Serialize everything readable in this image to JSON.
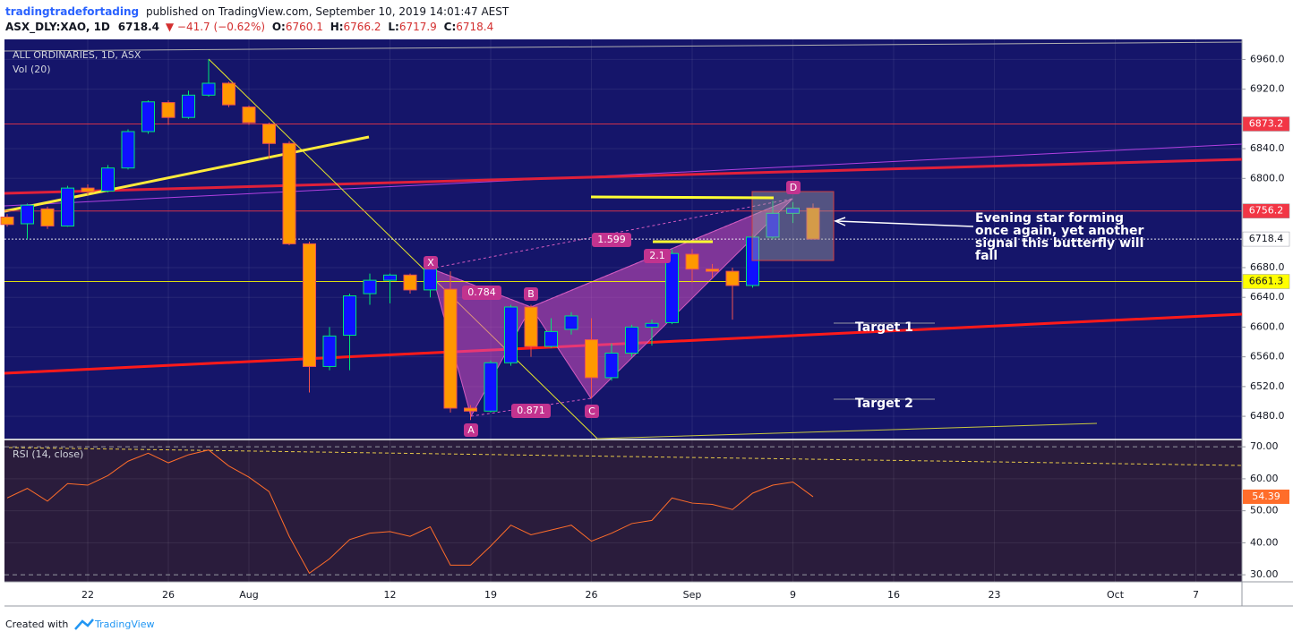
{
  "header": {
    "author": "tradingtradefortading",
    "published": "published on TradingView.com, September 10, 2019 14:01:47 AEST",
    "symbol": "ASX_DLY:XAO, 1D",
    "last": "6718.4",
    "change": "▼ −41.7 (−0.62%)",
    "ohlc": [
      {
        "label": "O:",
        "value": "6760.1"
      },
      {
        "label": "H:",
        "value": "6766.2"
      },
      {
        "label": "L:",
        "value": "6717.9"
      },
      {
        "label": "C:",
        "value": "6718.4"
      }
    ]
  },
  "chart_data": {
    "type": "candlestick",
    "title": "ALL ORDINARIES, 1D, ASX",
    "volume_label": "Vol (20)",
    "categories": [
      null,
      null,
      null,
      null,
      "22",
      null,
      null,
      null,
      "26",
      null,
      null,
      null,
      "Aug",
      null,
      null,
      null,
      null,
      null,
      null,
      "12",
      null,
      null,
      null,
      null,
      "19",
      null,
      null,
      null,
      null,
      "26",
      null,
      null,
      null,
      null,
      "Sep",
      null,
      null,
      null,
      null,
      "9",
      null,
      null,
      null,
      null,
      "16",
      null,
      null,
      null,
      null,
      "23",
      null,
      null,
      null,
      null,
      null,
      "Oct",
      null,
      null,
      null,
      "7",
      null,
      null
    ],
    "open": [
      6748,
      6739,
      6759,
      6736,
      6787,
      6783,
      6814,
      6863,
      6902,
      6882,
      6912,
      6928,
      6896,
      6873,
      6847,
      6712,
      6547,
      6589,
      6645,
      6663,
      6670,
      6650,
      6651,
      6491,
      6487,
      6552,
      6627,
      6574,
      6597,
      6583,
      6532,
      6565,
      6600,
      6606,
      6698,
      6678,
      6675,
      6656,
      6721,
      6753,
      6760.1,
      null,
      null,
      null,
      null,
      null,
      null,
      null,
      null,
      null,
      null,
      null,
      null,
      null,
      null,
      null,
      null,
      null,
      null,
      null,
      null,
      null
    ],
    "high": [
      6752,
      6766,
      6762,
      6790,
      6792,
      6818,
      6866,
      6905,
      6905,
      6918,
      6960,
      6930,
      6898,
      6875,
      6850,
      6715,
      6600,
      6645,
      6672,
      6672,
      6672,
      6682,
      6675,
      6495,
      6555,
      6630,
      6630,
      6612,
      6620,
      6612,
      6578,
      6603,
      6610,
      6705,
      6705,
      6685,
      6680,
      6725,
      6770,
      6768,
      6766.2,
      null,
      null,
      null,
      null,
      null,
      null,
      null,
      null,
      null,
      null,
      null,
      null,
      null,
      null,
      null,
      null,
      null,
      null,
      null,
      null,
      null
    ],
    "low": [
      6735,
      6718,
      6732,
      6735,
      6778,
      6781,
      6812,
      6860,
      6872,
      6880,
      6910,
      6896,
      6872,
      6827,
      6710,
      6512,
      6542,
      6542,
      6630,
      6632,
      6645,
      6640,
      6485,
      6475,
      6485,
      6548,
      6560,
      6572,
      6590,
      6504,
      6528,
      6560,
      6575,
      6604,
      6660,
      6665,
      6610,
      6653,
      6718,
      6740,
      6717.9,
      null,
      null,
      null,
      null,
      null,
      null,
      null,
      null,
      null,
      null,
      null,
      null,
      null,
      null,
      null,
      null,
      null,
      null,
      null,
      null,
      null
    ],
    "close": [
      6738,
      6764,
      6736,
      6787,
      6782,
      6814,
      6863,
      6903,
      6882,
      6912,
      6928,
      6899,
      6875,
      6847,
      6712,
      6547,
      6588,
      6642,
      6663,
      6670,
      6650,
      6678,
      6491,
      6487,
      6552,
      6627,
      6574,
      6594,
      6615,
      6532,
      6565,
      6600,
      6605,
      6699,
      6678,
      6675,
      6656,
      6721,
      6753,
      6760,
      6718.4,
      null,
      null,
      null,
      null,
      null,
      null,
      null,
      null,
      null,
      null,
      null,
      null,
      null,
      null,
      null,
      null,
      null,
      null,
      null,
      null,
      null
    ],
    "up_color": "#1010ff",
    "up_border": "#00e676",
    "down_color": "#ff9800",
    "down_border": "#ef5350",
    "ylim": [
      6450,
      6987
    ],
    "yticks": [
      {
        "value": 6480,
        "label": "6480.0"
      },
      {
        "value": 6520,
        "label": "6520.0"
      },
      {
        "value": 6560,
        "label": "6560.0"
      },
      {
        "value": 6600,
        "label": "6600.0"
      },
      {
        "value": 6640,
        "label": "6640.0"
      },
      {
        "value": 6680,
        "label": "6680.0"
      },
      {
        "value": 6800,
        "label": "6800.0"
      },
      {
        "value": 6840,
        "label": "6840.0"
      },
      {
        "value": 6920,
        "label": "6920.0"
      },
      {
        "value": 6960,
        "label": "6960.0"
      }
    ],
    "grid": true,
    "price_lines": [
      {
        "value": 6873.2,
        "color": "#f23645",
        "text_color": "#ffffff"
      },
      {
        "value": 6756.2,
        "color": "#f23645",
        "text_color": "#ffffff"
      },
      {
        "value": 6718.4,
        "color": "#ffffff",
        "text_color": "#131722"
      },
      {
        "value": 6661.3,
        "color": "#ffff00",
        "text_color": "#131722"
      }
    ],
    "rsi": {
      "title": "RSI (14, close)",
      "color": "#ff6d2a",
      "values": [
        54,
        57,
        53,
        58.5,
        58,
        61,
        65.5,
        68,
        65,
        67.5,
        69,
        64,
        60.5,
        56,
        42,
        30.5,
        35,
        41,
        43,
        43.5,
        42,
        45,
        33,
        33,
        39,
        45.5,
        42.5,
        44,
        45.5,
        40.5,
        43,
        46,
        47,
        54,
        52.4,
        52,
        50.4,
        55.5,
        58,
        59,
        54.39,
        null,
        null,
        null,
        null,
        null,
        null,
        null,
        null,
        null,
        null,
        null,
        null,
        null,
        null,
        null,
        null,
        null,
        null,
        null,
        null,
        null
      ],
      "ylim": [
        27.8,
        72
      ],
      "yticks": [
        {
          "value": 30,
          "label": "30.00"
        },
        {
          "value": 40,
          "label": "40.00"
        },
        {
          "value": 50,
          "label": "50.00"
        },
        {
          "value": 60,
          "label": "60.00"
        },
        {
          "value": 70,
          "label": "70.00"
        }
      ]
    },
    "annotations": {
      "points": [
        "X",
        "A",
        "B",
        "C",
        "D"
      ],
      "ratios": [
        "0.784",
        "0.871",
        "1.599",
        "2.1"
      ],
      "note": [
        "Evening star forming",
        "once again, yet another",
        "signal this butterfly will",
        "fall"
      ],
      "targets": [
        "Target 1",
        "Target 2"
      ]
    }
  },
  "footer": {
    "created_with": "Created with",
    "brand": "TradingView"
  }
}
